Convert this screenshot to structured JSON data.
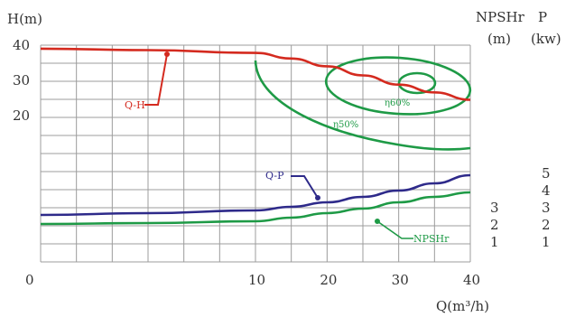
{
  "chart_data": {
    "type": "line",
    "x_axis": {
      "label": "Q(m³/h)",
      "ticks": [
        0,
        10,
        20,
        30,
        40
      ],
      "range": [
        0,
        40
      ]
    },
    "left_axis": {
      "label": "H(m)",
      "ticks": [
        20,
        30,
        40
      ]
    },
    "right_axes": [
      {
        "label_top": "NPSHr",
        "label_unit": "(m)",
        "ticks": [
          "1",
          "2",
          "3"
        ]
      },
      {
        "label_top": "P",
        "label_unit": "(kw)",
        "ticks": [
          "1",
          "2",
          "3",
          "4",
          "5"
        ]
      }
    ],
    "grid": true,
    "series": [
      {
        "name": "Q-H",
        "axis": "H",
        "color": "#d42a1f",
        "points": [
          [
            0,
            39
          ],
          [
            5,
            38.6
          ],
          [
            10,
            37.8
          ],
          [
            15,
            36.2
          ],
          [
            20,
            34
          ],
          [
            25,
            31.4
          ],
          [
            30,
            28.8
          ],
          [
            35,
            26.6
          ],
          [
            40,
            24.5
          ]
        ]
      },
      {
        "name": "Q-P",
        "axis": "P",
        "color": "#2e2a8a",
        "points": [
          [
            0,
            1.7
          ],
          [
            5,
            1.8
          ],
          [
            10,
            1.95
          ],
          [
            15,
            2.15
          ],
          [
            20,
            2.4
          ],
          [
            25,
            2.7
          ],
          [
            30,
            3.05
          ],
          [
            35,
            3.45
          ],
          [
            40,
            3.9
          ]
        ]
      },
      {
        "name": "NPSHr",
        "axis": "NPSHr",
        "color": "#1e9a46",
        "points": [
          [
            0,
            1.2
          ],
          [
            5,
            1.25
          ],
          [
            10,
            1.35
          ],
          [
            15,
            1.55
          ],
          [
            20,
            1.8
          ],
          [
            25,
            2.05
          ],
          [
            30,
            2.4
          ],
          [
            35,
            2.7
          ],
          [
            40,
            2.95
          ]
        ]
      }
    ],
    "efficiency_contours": [
      {
        "label": "η50%",
        "color": "#1e9a46"
      },
      {
        "label": "η60%",
        "color": "#1e9a46"
      },
      {
        "label": "",
        "color": "#1e9a46"
      }
    ]
  }
}
